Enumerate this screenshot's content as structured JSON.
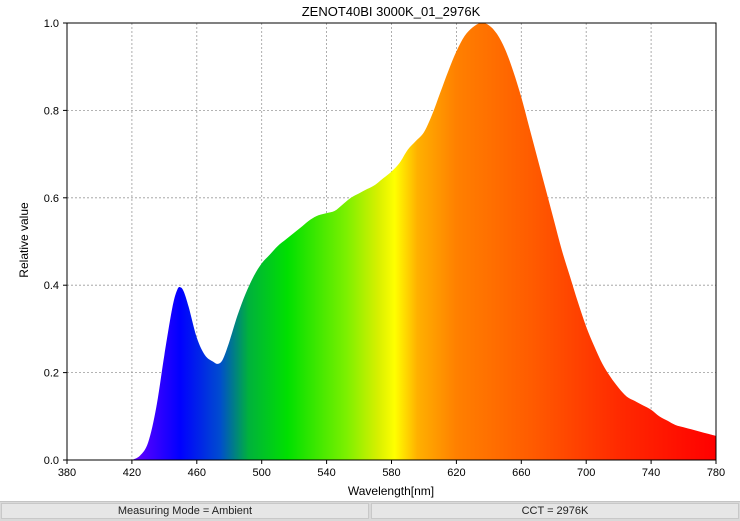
{
  "chart_data": {
    "type": "area",
    "title": "ZENOT40BI 3000K_01_2976K",
    "xlabel": "Wavelength[nm]",
    "ylabel": "Relative value",
    "xlim": [
      380,
      780
    ],
    "ylim": [
      0,
      1.0
    ],
    "x_ticks": [
      380,
      420,
      460,
      500,
      540,
      580,
      620,
      660,
      700,
      740,
      780
    ],
    "x_tick_labels": [
      "380",
      "420",
      "460",
      "500",
      "540",
      "580",
      "620",
      "660",
      "700",
      "740",
      "780"
    ],
    "y_ticks": [
      0,
      0.2,
      0.4,
      0.6,
      0.8,
      1.0
    ],
    "y_tick_labels": [
      "0.0",
      "0.2",
      "0.4",
      "0.6",
      "0.8",
      "1.0"
    ],
    "grid": true,
    "fill": "visible-spectrum gradient",
    "series": [
      {
        "x": [
          420,
          425,
          430,
          435,
          440,
          445,
          448,
          450,
          452,
          455,
          460,
          465,
          470,
          473,
          476,
          480,
          485,
          490,
          495,
          500,
          505,
          510,
          515,
          520,
          525,
          530,
          535,
          540,
          545,
          550,
          555,
          560,
          565,
          570,
          575,
          580,
          585,
          590,
          595,
          600,
          605,
          610,
          615,
          620,
          625,
          630,
          635,
          640,
          645,
          650,
          655,
          660,
          665,
          670,
          675,
          680,
          685,
          690,
          695,
          700,
          705,
          710,
          715,
          720,
          725,
          730,
          735,
          740,
          745,
          750,
          755,
          760,
          765,
          770,
          775,
          780
        ],
        "y": [
          0.0,
          0.01,
          0.04,
          0.12,
          0.24,
          0.35,
          0.39,
          0.395,
          0.385,
          0.35,
          0.28,
          0.24,
          0.225,
          0.22,
          0.23,
          0.27,
          0.33,
          0.38,
          0.42,
          0.45,
          0.47,
          0.49,
          0.505,
          0.52,
          0.535,
          0.55,
          0.56,
          0.565,
          0.57,
          0.585,
          0.6,
          0.61,
          0.62,
          0.63,
          0.645,
          0.66,
          0.68,
          0.71,
          0.73,
          0.75,
          0.79,
          0.84,
          0.89,
          0.935,
          0.97,
          0.99,
          1.0,
          0.995,
          0.975,
          0.94,
          0.89,
          0.83,
          0.76,
          0.69,
          0.62,
          0.55,
          0.48,
          0.42,
          0.36,
          0.305,
          0.26,
          0.22,
          0.19,
          0.165,
          0.145,
          0.135,
          0.125,
          0.115,
          0.1,
          0.09,
          0.08,
          0.075,
          0.07,
          0.065,
          0.06,
          0.055
        ]
      }
    ]
  },
  "status": {
    "mode": "Measuring Mode = Ambient",
    "cct": "CCT = 2976K"
  },
  "colors": {
    "grid": "#9a9a9a",
    "axis": "#000000",
    "status_bg": "#e6e6e6"
  }
}
